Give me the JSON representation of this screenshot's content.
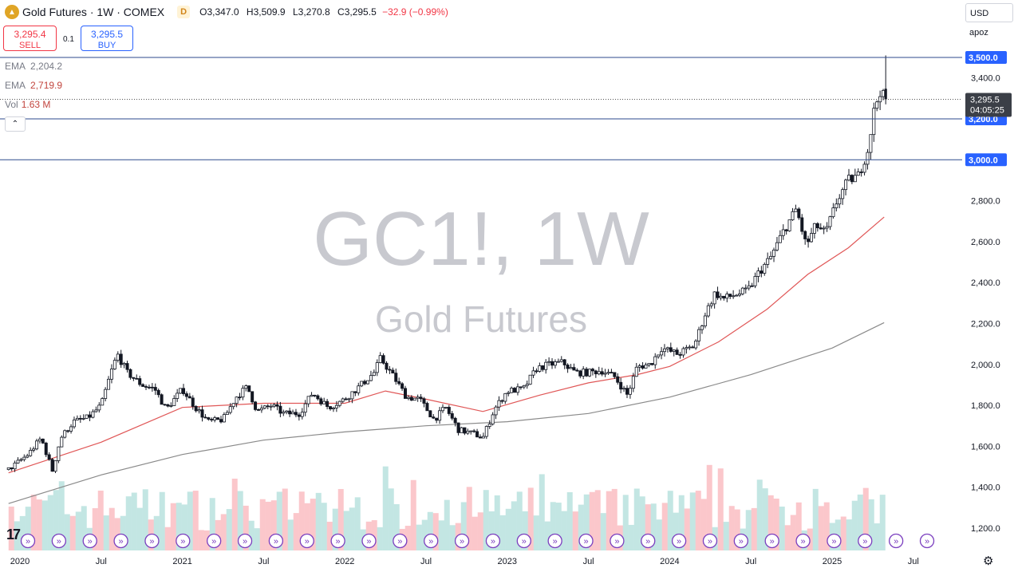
{
  "header": {
    "title": "Gold Futures · 1W · COMEX",
    "badge": "D",
    "open_label": "O",
    "open": "3,347.0",
    "high_label": "H",
    "high": "3,509.9",
    "low_label": "L",
    "low": "3,270.8",
    "close_label": "C",
    "close": "3,295.5",
    "change": "−32.9 (−0.99%)"
  },
  "trade": {
    "sell_price": "3,295.4",
    "sell_label": "SELL",
    "spread": "0.1",
    "buy_price": "3,295.5",
    "buy_label": "BUY"
  },
  "indicators": [
    {
      "name": "EMA",
      "value": "2,204.2"
    },
    {
      "name": "EMA",
      "value": "2,719.9"
    },
    {
      "name": "Vol",
      "value": "1.63 M"
    }
  ],
  "collapse_icon": "chevron-up-icon",
  "currency": "USD",
  "scale_mode": "apoz",
  "watermark": {
    "symbol": "GC1!, 1W",
    "name": "Gold Futures"
  },
  "current_price": {
    "value": "3,295.5",
    "countdown": "04:05:25"
  },
  "colors": {
    "up": "#26a69a",
    "down": "#f23645",
    "candle": "#131722",
    "ema_fast": "#e05757",
    "ema_slow": "#8a8a8a",
    "hline": "#2e4a8e",
    "label_bg": "#2962ff",
    "event": "#7b3fbf"
  },
  "chart_data": {
    "type": "candlestick",
    "instrument": "Gold Futures",
    "interval": "1W",
    "y_ticks": [
      1200,
      1400,
      1600,
      1800,
      2000,
      2200,
      2400,
      2600,
      2800,
      3000,
      3200,
      3400,
      3500
    ],
    "y_tick_labels": [
      "1,200.0",
      "1,400.0",
      "1,600.0",
      "1,800.0",
      "2,000.0",
      "2,200.0",
      "2,400.0",
      "2,600.0",
      "2,800.0",
      "3,000.0",
      "3,200.0",
      "3,400.0",
      "3,500.0"
    ],
    "ylim": [
      1130,
      3600
    ],
    "x_labels": [
      {
        "date": 2020.0,
        "label": "2020"
      },
      {
        "date": 2020.5,
        "label": "Jul"
      },
      {
        "date": 2021.0,
        "label": "2021"
      },
      {
        "date": 2021.5,
        "label": "Jul"
      },
      {
        "date": 2022.0,
        "label": "2022"
      },
      {
        "date": 2022.5,
        "label": "Jul"
      },
      {
        "date": 2023.0,
        "label": "2023"
      },
      {
        "date": 2023.5,
        "label": "Jul"
      },
      {
        "date": 2024.0,
        "label": "2024"
      },
      {
        "date": 2024.5,
        "label": "Jul"
      },
      {
        "date": 2025.0,
        "label": "2025"
      },
      {
        "date": 2025.5,
        "label": "Jul"
      }
    ],
    "xlim": [
      2019.93,
      2025.73
    ],
    "horizontal_lines": [
      {
        "price": 3500,
        "label": "3,500.0"
      },
      {
        "price": 3200,
        "label": "3,200.0"
      },
      {
        "price": 3000,
        "label": "3,000.0"
      }
    ],
    "price_series": {
      "name": "GC1!",
      "points": [
        {
          "date": 2019.92,
          "close": 1480
        },
        {
          "date": 2020.05,
          "close": 1560
        },
        {
          "date": 2020.13,
          "close": 1640
        },
        {
          "date": 2020.2,
          "close": 1480
        },
        {
          "date": 2020.25,
          "close": 1640
        },
        {
          "date": 2020.33,
          "close": 1720
        },
        {
          "date": 2020.42,
          "close": 1740
        },
        {
          "date": 2020.5,
          "close": 1800
        },
        {
          "date": 2020.56,
          "close": 1960
        },
        {
          "date": 2020.6,
          "close": 2050
        },
        {
          "date": 2020.66,
          "close": 1960
        },
        {
          "date": 2020.75,
          "close": 1900
        },
        {
          "date": 2020.83,
          "close": 1880
        },
        {
          "date": 2020.9,
          "close": 1780
        },
        {
          "date": 2021.0,
          "close": 1880
        },
        {
          "date": 2021.08,
          "close": 1790
        },
        {
          "date": 2021.16,
          "close": 1720
        },
        {
          "date": 2021.25,
          "close": 1730
        },
        {
          "date": 2021.33,
          "close": 1840
        },
        {
          "date": 2021.4,
          "close": 1890
        },
        {
          "date": 2021.46,
          "close": 1770
        },
        {
          "date": 2021.55,
          "close": 1800
        },
        {
          "date": 2021.62,
          "close": 1760
        },
        {
          "date": 2021.72,
          "close": 1760
        },
        {
          "date": 2021.8,
          "close": 1860
        },
        {
          "date": 2021.9,
          "close": 1790
        },
        {
          "date": 2022.0,
          "close": 1830
        },
        {
          "date": 2022.1,
          "close": 1900
        },
        {
          "date": 2022.18,
          "close": 1960
        },
        {
          "date": 2022.22,
          "close": 2030
        },
        {
          "date": 2022.3,
          "close": 1940
        },
        {
          "date": 2022.38,
          "close": 1840
        },
        {
          "date": 2022.46,
          "close": 1830
        },
        {
          "date": 2022.55,
          "close": 1730
        },
        {
          "date": 2022.62,
          "close": 1790
        },
        {
          "date": 2022.7,
          "close": 1680
        },
        {
          "date": 2022.8,
          "close": 1660
        },
        {
          "date": 2022.85,
          "close": 1640
        },
        {
          "date": 2022.92,
          "close": 1780
        },
        {
          "date": 2023.0,
          "close": 1870
        },
        {
          "date": 2023.1,
          "close": 1880
        },
        {
          "date": 2023.18,
          "close": 1980
        },
        {
          "date": 2023.26,
          "close": 2000
        },
        {
          "date": 2023.34,
          "close": 2010
        },
        {
          "date": 2023.42,
          "close": 1960
        },
        {
          "date": 2023.5,
          "close": 1960
        },
        {
          "date": 2023.58,
          "close": 1970
        },
        {
          "date": 2023.66,
          "close": 1940
        },
        {
          "date": 2023.74,
          "close": 1850
        },
        {
          "date": 2023.8,
          "close": 1990
        },
        {
          "date": 2023.88,
          "close": 2000
        },
        {
          "date": 2023.95,
          "close": 2080
        },
        {
          "date": 2024.05,
          "close": 2050
        },
        {
          "date": 2024.15,
          "close": 2090
        },
        {
          "date": 2024.22,
          "close": 2250
        },
        {
          "date": 2024.28,
          "close": 2350
        },
        {
          "date": 2024.33,
          "close": 2320
        },
        {
          "date": 2024.4,
          "close": 2340
        },
        {
          "date": 2024.48,
          "close": 2360
        },
        {
          "date": 2024.55,
          "close": 2450
        },
        {
          "date": 2024.62,
          "close": 2520
        },
        {
          "date": 2024.7,
          "close": 2650
        },
        {
          "date": 2024.78,
          "close": 2760
        },
        {
          "date": 2024.84,
          "close": 2580
        },
        {
          "date": 2024.9,
          "close": 2680
        },
        {
          "date": 2024.96,
          "close": 2640
        },
        {
          "date": 2025.03,
          "close": 2800
        },
        {
          "date": 2025.1,
          "close": 2900
        },
        {
          "date": 2025.16,
          "close": 2920
        },
        {
          "date": 2025.22,
          "close": 3050
        },
        {
          "date": 2025.26,
          "close": 3250
        },
        {
          "date": 2025.3,
          "close": 3347
        },
        {
          "date": 2025.32,
          "close": 3295.5
        }
      ]
    },
    "ema_fast": {
      "name": "EMA",
      "last": 2719.9,
      "points": [
        [
          2019.93,
          1470
        ],
        [
          2020.5,
          1620
        ],
        [
          2021.0,
          1790
        ],
        [
          2021.5,
          1810
        ],
        [
          2022.0,
          1810
        ],
        [
          2022.25,
          1870
        ],
        [
          2022.5,
          1830
        ],
        [
          2022.85,
          1770
        ],
        [
          2023.2,
          1850
        ],
        [
          2023.5,
          1910
        ],
        [
          2023.8,
          1950
        ],
        [
          2024.0,
          1990
        ],
        [
          2024.3,
          2110
        ],
        [
          2024.6,
          2270
        ],
        [
          2024.85,
          2440
        ],
        [
          2025.1,
          2570
        ],
        [
          2025.32,
          2719.9
        ]
      ]
    },
    "ema_slow": {
      "name": "EMA",
      "last": 2204.2,
      "points": [
        [
          2019.93,
          1320
        ],
        [
          2020.5,
          1460
        ],
        [
          2021.0,
          1560
        ],
        [
          2021.5,
          1630
        ],
        [
          2022.0,
          1670
        ],
        [
          2022.5,
          1700
        ],
        [
          2023.0,
          1720
        ],
        [
          2023.5,
          1760
        ],
        [
          2024.0,
          1840
        ],
        [
          2024.5,
          1950
        ],
        [
          2025.0,
          2080
        ],
        [
          2025.32,
          2204.2
        ]
      ]
    },
    "volume": {
      "name": "Vol",
      "last": "1.63 M"
    }
  },
  "event_markers_count": 30
}
